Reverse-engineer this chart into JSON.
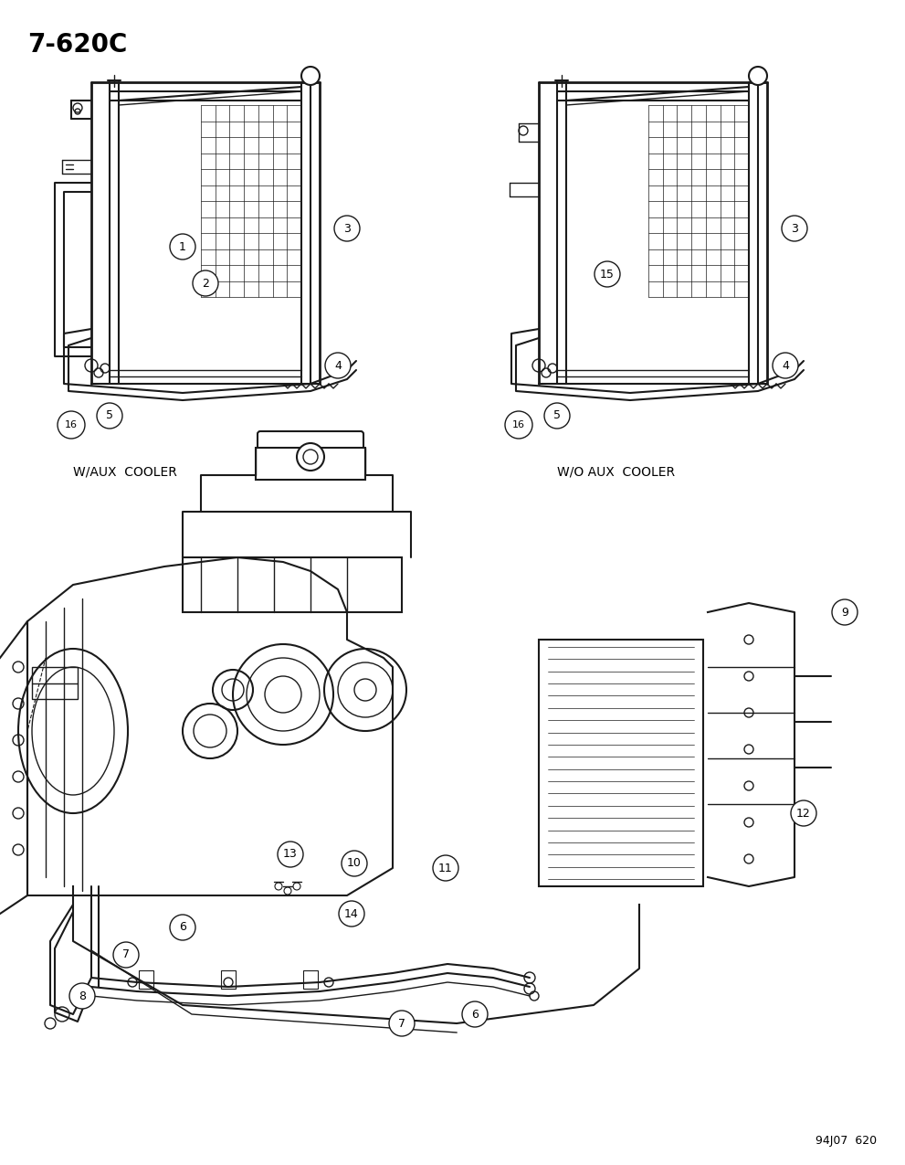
{
  "title": "7-620C",
  "footer": "94J07  620",
  "label_w_aux": "W/AUX  COOLER",
  "label_wo_aux": "W/O AUX  COOLER",
  "bg_color": "#ffffff",
  "line_color": "#1a1a1a",
  "text_color": "#000000",
  "fig_width": 9.91,
  "fig_height": 12.75,
  "dpi": 100
}
